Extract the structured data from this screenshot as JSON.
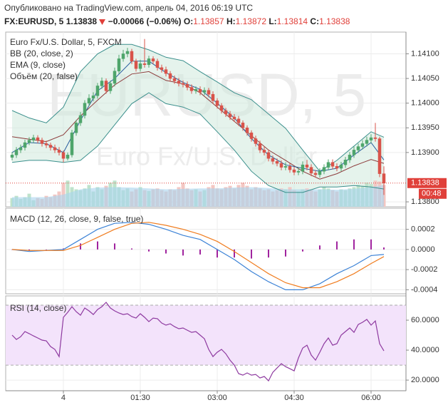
{
  "header": {
    "published": "Опубликовано на TradingView.com, апрель 04, 2016 06:19 UTC",
    "symbol": "FX:EURUSD, 5",
    "change": "−0.00066 (−0.06%)",
    "ohlc_labels": [
      "O:",
      "H:",
      "L:",
      "C:"
    ]
  },
  "chart_data": [
    {
      "type": "candlestick",
      "title": "Euro Fx/U.S. Dollar, 5, FXCM",
      "watermark": [
        "EURUSD, 5",
        "Euro Fx/U.S. Dollar"
      ],
      "countdown": "00:48",
      "up_color": "#4ea56b",
      "down_color": "#d9534a",
      "last_color": "#e0403a",
      "xlim": [
        -1.5,
        92.17
      ],
      "xticks": [
        {
          "value": 12,
          "label": "4"
        },
        {
          "value": 30,
          "label": "01:30"
        },
        {
          "value": 48,
          "label": "03:00"
        },
        {
          "value": 66,
          "label": "04:30"
        },
        {
          "value": 84,
          "label": "06:00"
        }
      ],
      "ylim": [
        1.1379,
        1.14144
      ],
      "yticks": [
        {
          "value": 1.141,
          "label": "1.14100"
        },
        {
          "value": 1.1405,
          "label": "1.14050"
        },
        {
          "value": 1.14,
          "label": "1.14000"
        },
        {
          "value": 1.1395,
          "label": "1.13950"
        },
        {
          "value": 1.139,
          "label": "1.13900"
        },
        {
          "value": 1.138,
          "label": "1.13800"
        }
      ],
      "candles": [
        [
          1.1389,
          1.13901,
          1.13884,
          1.13895
        ],
        [
          1.13895,
          1.13911,
          1.13889,
          1.13905
        ],
        [
          1.13905,
          1.13916,
          1.13899,
          1.1391
        ],
        [
          1.1391,
          1.13926,
          1.13904,
          1.1392
        ],
        [
          1.1392,
          1.13931,
          1.13915,
          1.13925
        ],
        [
          1.13925,
          1.13936,
          1.13919,
          1.1393
        ],
        [
          1.1393,
          1.13935,
          1.13919,
          1.13925
        ],
        [
          1.13925,
          1.1393,
          1.13912,
          1.13918
        ],
        [
          1.13918,
          1.13924,
          1.13909,
          1.13915
        ],
        [
          1.13915,
          1.1392,
          1.13904,
          1.1391
        ],
        [
          1.1391,
          1.13916,
          1.13899,
          1.13905
        ],
        [
          1.13905,
          1.13911,
          1.13894,
          1.139
        ],
        [
          1.139,
          1.13904,
          1.1388,
          1.13888
        ],
        [
          1.13888,
          1.139,
          1.13884,
          1.13895
        ],
        [
          1.13895,
          1.13946,
          1.1389,
          1.1394
        ],
        [
          1.1394,
          1.13966,
          1.13934,
          1.1396
        ],
        [
          1.1396,
          1.13982,
          1.13954,
          1.13975
        ],
        [
          1.13975,
          1.14006,
          1.13969,
          1.14
        ],
        [
          1.14,
          1.14018,
          1.13994,
          1.1401
        ],
        [
          1.1401,
          1.14022,
          1.14004,
          1.14015
        ],
        [
          1.14015,
          1.14041,
          1.14009,
          1.14035
        ],
        [
          1.14035,
          1.14052,
          1.14029,
          1.14045
        ],
        [
          1.14045,
          1.1405,
          1.14019,
          1.14025
        ],
        [
          1.14025,
          1.14046,
          1.14019,
          1.1404
        ],
        [
          1.1404,
          1.14072,
          1.14034,
          1.14065
        ],
        [
          1.14065,
          1.14098,
          1.14059,
          1.1409
        ],
        [
          1.1409,
          1.14108,
          1.14084,
          1.141
        ],
        [
          1.141,
          1.14112,
          1.14093,
          1.14105
        ],
        [
          1.14105,
          1.1411,
          1.14079,
          1.14085
        ],
        [
          1.14085,
          1.1409,
          1.14064,
          1.1407
        ],
        [
          1.1407,
          1.14088,
          1.14064,
          1.1408
        ],
        [
          1.1408,
          1.1413,
          1.14072,
          1.14078
        ],
        [
          1.14078,
          1.14096,
          1.14072,
          1.1409
        ],
        [
          1.1409,
          1.14095,
          1.14079,
          1.14085
        ],
        [
          1.14085,
          1.1409,
          1.14066,
          1.14072
        ],
        [
          1.14072,
          1.14078,
          1.14062,
          1.14068
        ],
        [
          1.14068,
          1.14074,
          1.14054,
          1.1406
        ],
        [
          1.1406,
          1.14065,
          1.14044,
          1.1405
        ],
        [
          1.1405,
          1.14056,
          1.14039,
          1.14045
        ],
        [
          1.14045,
          1.14051,
          1.14034,
          1.1404
        ],
        [
          1.1404,
          1.14046,
          1.14032,
          1.14038
        ],
        [
          1.14038,
          1.14044,
          1.14026,
          1.14032
        ],
        [
          1.14032,
          1.14038,
          1.14019,
          1.14025
        ],
        [
          1.14025,
          1.14034,
          1.14019,
          1.14028
        ],
        [
          1.14028,
          1.14034,
          1.14016,
          1.14022
        ],
        [
          1.14022,
          1.14032,
          1.14016,
          1.14026
        ],
        [
          1.14026,
          1.14031,
          1.14012,
          1.14018
        ],
        [
          1.14018,
          1.14024,
          1.13999,
          1.14005
        ],
        [
          1.14005,
          1.1401,
          1.13989,
          1.13995
        ],
        [
          1.13995,
          1.14,
          1.13979,
          1.13985
        ],
        [
          1.13985,
          1.1399,
          1.13972,
          1.13978
        ],
        [
          1.13978,
          1.13984,
          1.13966,
          1.13972
        ],
        [
          1.13972,
          1.13978,
          1.13962,
          1.13968
        ],
        [
          1.13968,
          1.13974,
          1.13954,
          1.1396
        ],
        [
          1.1396,
          1.13965,
          1.13944,
          1.1395
        ],
        [
          1.1395,
          1.13955,
          1.13934,
          1.1394
        ],
        [
          1.1394,
          1.13945,
          1.13922,
          1.13928
        ],
        [
          1.13928,
          1.13934,
          1.13912,
          1.13918
        ],
        [
          1.13918,
          1.13924,
          1.13899,
          1.13905
        ],
        [
          1.13905,
          1.13912,
          1.13894,
          1.139
        ],
        [
          1.139,
          1.13906,
          1.13882,
          1.13888
        ],
        [
          1.13888,
          1.13894,
          1.13876,
          1.13882
        ],
        [
          1.13882,
          1.13888,
          1.13872,
          1.13878
        ],
        [
          1.13878,
          1.13884,
          1.13864,
          1.1387
        ],
        [
          1.1387,
          1.1388,
          1.13864,
          1.13872
        ],
        [
          1.13872,
          1.13878,
          1.13859,
          1.13865
        ],
        [
          1.13865,
          1.13871,
          1.13854,
          1.1386
        ],
        [
          1.1386,
          1.1387,
          1.13854,
          1.13862
        ],
        [
          1.13862,
          1.13882,
          1.13856,
          1.13875
        ],
        [
          1.13875,
          1.13885,
          1.13864,
          1.1387
        ],
        [
          1.1387,
          1.13876,
          1.13852,
          1.13858
        ],
        [
          1.13858,
          1.13864,
          1.13849,
          1.13855
        ],
        [
          1.13855,
          1.13868,
          1.13849,
          1.13862
        ],
        [
          1.13862,
          1.13876,
          1.13856,
          1.1387
        ],
        [
          1.1387,
          1.13886,
          1.13864,
          1.1388
        ],
        [
          1.1388,
          1.13886,
          1.13866,
          1.13872
        ],
        [
          1.13872,
          1.13878,
          1.13862,
          1.13868
        ],
        [
          1.13868,
          1.13881,
          1.13862,
          1.13875
        ],
        [
          1.13875,
          1.13891,
          1.13869,
          1.13885
        ],
        [
          1.13885,
          1.13901,
          1.13879,
          1.13895
        ],
        [
          1.13895,
          1.13912,
          1.13889,
          1.13905
        ],
        [
          1.13905,
          1.13918,
          1.13899,
          1.13912
        ],
        [
          1.13912,
          1.13925,
          1.13906,
          1.13918
        ],
        [
          1.13918,
          1.13932,
          1.13912,
          1.13925
        ],
        [
          1.13925,
          1.13937,
          1.13919,
          1.1393
        ],
        [
          1.1393,
          1.1396,
          1.13922,
          1.13928
        ],
        [
          1.13928,
          1.13932,
          1.1385,
          1.13857
        ],
        [
          1.13857,
          1.13872,
          1.13814,
          1.13838
        ]
      ],
      "indicator_x": [
        0,
        4,
        8,
        12,
        16,
        20,
        24,
        28,
        32,
        36,
        40,
        44,
        48,
        52,
        56,
        60,
        64,
        68,
        72,
        76,
        80,
        84,
        87
      ],
      "bb": {
        "name": "BB (20, close, 2)",
        "color": "#3b8f8c",
        "fill": "#cfe9dd",
        "basis_color": "#8c3b3b",
        "upper": [
          1.13985,
          1.1397,
          1.1396,
          1.13992,
          1.14064,
          1.141,
          1.14119,
          1.14119,
          1.14108,
          1.14093,
          1.14086,
          1.14064,
          1.14043,
          1.14021,
          1.14007,
          1.13978,
          1.13949,
          1.13905,
          1.13862,
          1.13884,
          1.13913,
          1.13942,
          1.13931
        ],
        "lower": [
          1.1388,
          1.13884,
          1.13884,
          1.1388,
          1.13884,
          1.13913,
          1.13956,
          1.13999,
          1.14021,
          1.13999,
          1.13992,
          1.13978,
          1.13942,
          1.13905,
          1.13862,
          1.13833,
          1.13819,
          1.13819,
          1.1383,
          1.1383,
          1.13833,
          1.1383,
          1.13826
        ],
        "basis": [
          1.13932,
          1.13927,
          1.13922,
          1.13936,
          1.13974,
          1.14006,
          1.14037,
          1.14059,
          1.14064,
          1.14046,
          1.14039,
          1.14021,
          1.13992,
          1.13963,
          1.13934,
          1.13905,
          1.13884,
          1.13862,
          1.13846,
          1.13857,
          1.13873,
          1.13886,
          1.13878
        ]
      },
      "ema": {
        "name": "EMA (9, close)",
        "color": "#2a5f9e",
        "values": [
          1.139,
          1.1392,
          1.13918,
          1.139,
          1.13965,
          1.14025,
          1.1405,
          1.14085,
          1.14085,
          1.14062,
          1.14042,
          1.14028,
          1.14,
          1.1397,
          1.13928,
          1.13895,
          1.13875,
          1.13868,
          1.13862,
          1.13868,
          1.13895,
          1.1392,
          1.13885
        ]
      },
      "volume": {
        "name": "Объём (20, false)",
        "ylim": [
          0,
          400
        ],
        "up_color": "#bfe3cb",
        "down_color": "#f3c7c3",
        "ma_color": "#a9d4ef",
        "values": [
          20,
          25,
          18,
          22,
          30,
          15,
          20,
          18,
          25,
          22,
          28,
          35,
          55,
          60,
          45,
          40,
          38,
          42,
          50,
          35,
          45,
          40,
          48,
          55,
          60,
          45,
          38,
          42,
          35,
          40,
          45,
          38,
          36,
          40,
          42,
          38,
          35,
          40,
          38,
          45,
          55,
          42,
          38,
          40,
          35,
          38,
          45,
          50,
          42,
          40,
          45,
          48,
          42,
          50,
          55,
          48,
          40,
          45,
          42,
          38,
          40,
          35,
          38,
          42,
          40,
          45,
          38,
          35,
          40,
          42,
          38,
          35,
          40,
          45,
          42,
          38,
          35,
          40,
          38,
          42,
          45,
          50,
          48,
          55,
          52,
          60,
          58,
          50
        ],
        "ma": [
          22,
          22,
          22,
          28,
          40,
          44,
          45,
          44,
          42,
          40,
          41,
          42,
          42,
          44,
          45,
          43,
          40,
          40,
          40,
          39,
          41,
          45,
          50
        ]
      }
    },
    {
      "type": "macd",
      "title": "MACD (12, 26, close, 9, false, true)",
      "macd_color": "#3b82d6",
      "signal_color": "#f07c1e",
      "histogram_color": "#a0239e",
      "ylim": [
        -0.00044,
        0.00041
      ],
      "yticks": [
        {
          "value": 0.0002,
          "label": "0.0002"
        },
        {
          "value": 0,
          "label": "0.0000"
        },
        {
          "value": -0.0002,
          "label": "-0.0002"
        },
        {
          "value": -0.0004,
          "label": "-0.0004"
        }
      ],
      "x": [
        0,
        4,
        8,
        12,
        16,
        20,
        24,
        28,
        32,
        36,
        40,
        44,
        48,
        52,
        56,
        60,
        64,
        68,
        72,
        76,
        80,
        84,
        87
      ],
      "macd": [
        0,
        -2e-05,
        -1e-05,
        0,
        0.0001,
        0.0002,
        0.00026,
        0.00027,
        0.00025,
        0.0002,
        0.00014,
        0.0001,
        0,
        -0.0001,
        -0.00022,
        -0.00032,
        -0.0004,
        -0.0004,
        -0.00034,
        -0.00024,
        -0.00016,
        -6e-05,
        -5e-05
      ],
      "signal": [
        0,
        -1e-05,
        -1e-05,
        -1e-05,
        4e-05,
        0.00012,
        0.0002,
        0.00026,
        0.00027,
        0.00024,
        0.0002,
        0.00015,
        8e-05,
        -2e-05,
        -0.00013,
        -0.00024,
        -0.00033,
        -0.00038,
        -0.00038,
        -0.00032,
        -0.00024,
        -0.00014,
        -7e-05
      ],
      "histogram": [
        0,
        -1e-05,
        0,
        1e-05,
        6e-05,
        8e-05,
        6e-05,
        1e-05,
        -2e-05,
        -4e-05,
        -6e-05,
        -5e-05,
        -8e-05,
        -8e-05,
        -9e-05,
        -8e-05,
        -7e-05,
        -2e-05,
        4e-05,
        8e-05,
        0.0001,
        0.0001,
        2e-05
      ]
    },
    {
      "type": "rsi",
      "title": "RSI (14, close)",
      "color": "#8e3aa0",
      "band": [
        30,
        70
      ],
      "band_color": "#f3e3fb",
      "ylim": [
        12.9,
        76.2
      ],
      "yticks": [
        {
          "value": 60,
          "label": "60.0000"
        },
        {
          "value": 40,
          "label": "40.0000"
        },
        {
          "value": 20,
          "label": "20.0000"
        }
      ],
      "values": [
        50,
        47.1,
        49,
        52.4,
        51,
        49.5,
        48.1,
        46.7,
        46.2,
        42.4,
        40.5,
        35.7,
        61.9,
        65.2,
        69,
        65.7,
        63.3,
        68.1,
        66.2,
        63.8,
        67.1,
        69,
        71.9,
        68.1,
        66.2,
        64.8,
        63.8,
        64.3,
        62.4,
        61.4,
        64.3,
        61.9,
        59,
        61.4,
        61,
        58.1,
        56.7,
        57.6,
        55.7,
        54.3,
        54.8,
        53.3,
        51.9,
        52.4,
        50,
        47.6,
        40.5,
        35.7,
        38.6,
        40.5,
        37.6,
        33.3,
        30,
        24.3,
        23.3,
        24.8,
        23.3,
        23.8,
        21.4,
        22.4,
        19.5,
        25.2,
        28.1,
        31,
        29,
        27.6,
        26.2,
        34.8,
        41.4,
        43.3,
        36.7,
        33.3,
        38.6,
        44.3,
        48.1,
        43.3,
        44.3,
        50,
        52.4,
        54.8,
        51.9,
        57.1,
        58.6,
        60.5,
        56.7,
        59.5,
        44.3,
        39.5
      ]
    }
  ]
}
